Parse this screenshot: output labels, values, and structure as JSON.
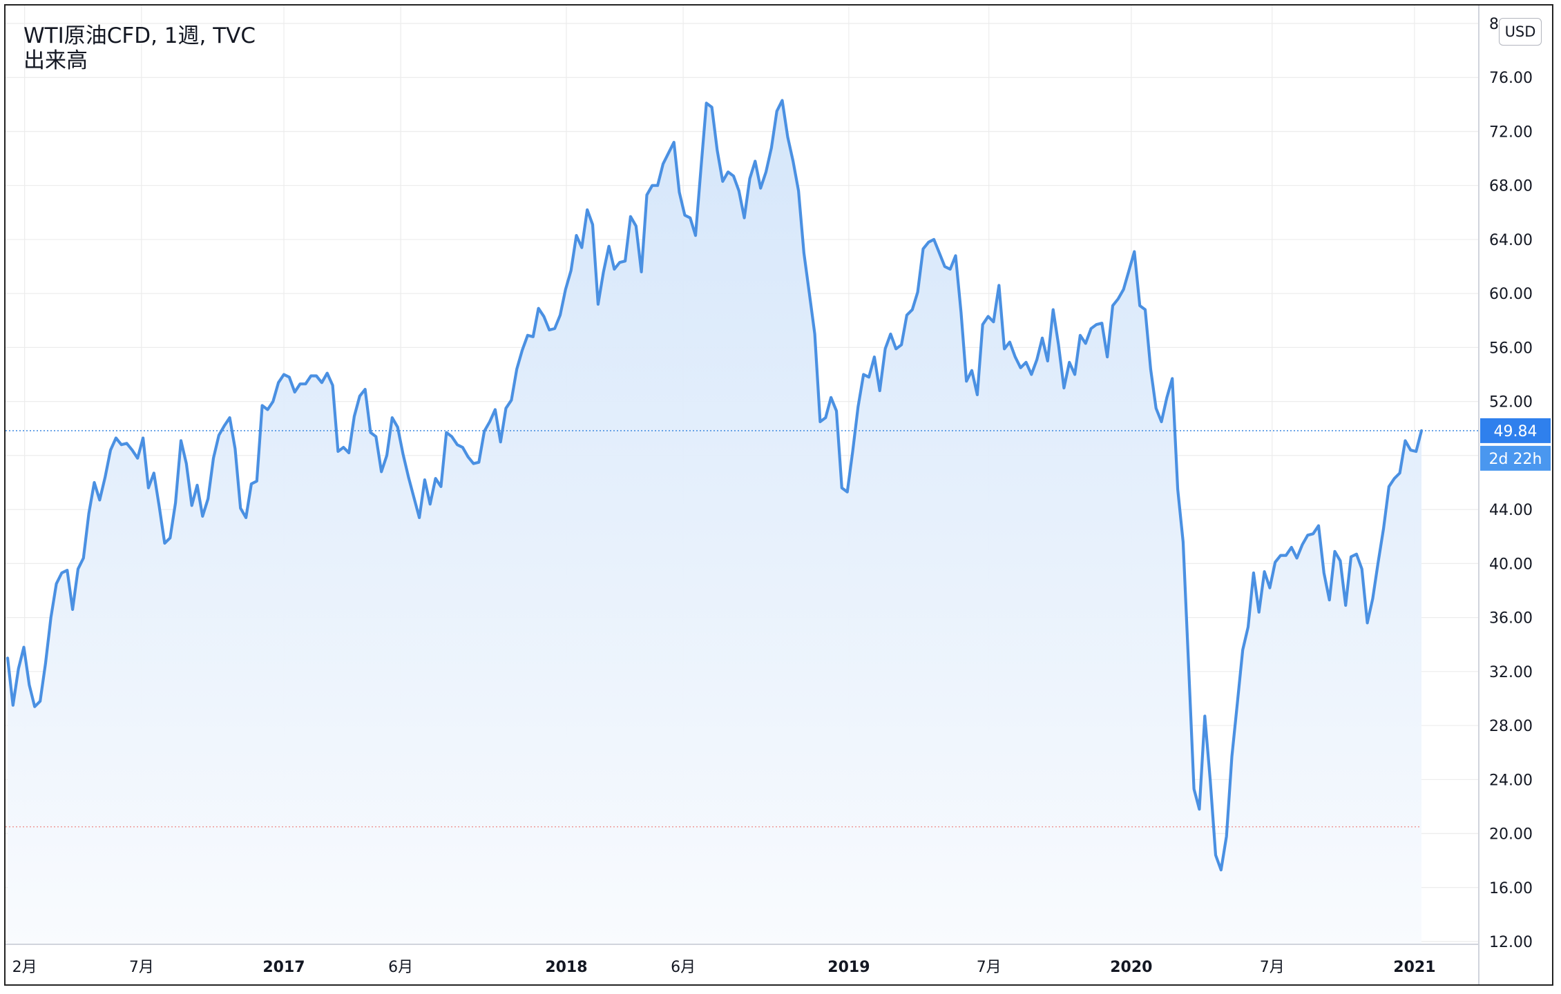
{
  "header": {
    "symbol_line": "WTI原油CFD, 1週, TVC",
    "indicator_line": "出来高"
  },
  "currency_button": "USD",
  "price_tag": {
    "value": "49.84",
    "countdown": "2d 22h"
  },
  "colors": {
    "line": "#4a90e2",
    "area_top": "#d3e5fa",
    "area_bottom": "#f9fbfe",
    "grid": "#ececec",
    "last_price_line": "#4a90e2",
    "ref_line": "#ef9a9a",
    "price_tag_bg": "#2f80ed",
    "countdown_bg": "#4a97ef"
  },
  "chart_data": {
    "type": "area",
    "title": "WTI原油CFD, 1週, TVC",
    "xlabel": "",
    "ylabel": "",
    "ylim": [
      12,
      80
    ],
    "y_ticks": [
      "12.00",
      "16.00",
      "20.00",
      "24.00",
      "28.00",
      "32.00",
      "36.00",
      "40.00",
      "44.00",
      "48.00",
      "52.00",
      "56.00",
      "60.00",
      "64.00",
      "68.00",
      "72.00",
      "76.00",
      "8"
    ],
    "x_ticks": [
      {
        "label": "2月",
        "date": "2016-02-01",
        "bold": false
      },
      {
        "label": "7月",
        "date": "2016-07-01",
        "bold": false
      },
      {
        "label": "2017",
        "date": "2017-01-01",
        "bold": true
      },
      {
        "label": "6月",
        "date": "2017-06-01",
        "bold": false
      },
      {
        "label": "2018",
        "date": "2018-01-01",
        "bold": true
      },
      {
        "label": "6月",
        "date": "2018-06-01",
        "bold": false
      },
      {
        "label": "2019",
        "date": "2019-01-01",
        "bold": true
      },
      {
        "label": "7月",
        "date": "2019-07-01",
        "bold": false
      },
      {
        "label": "2020",
        "date": "2020-01-01",
        "bold": true
      },
      {
        "label": "7月",
        "date": "2020-07-01",
        "bold": false
      },
      {
        "label": "2021",
        "date": "2021-01-01",
        "bold": true
      }
    ],
    "last_price": 49.84,
    "reference_line": 20.5,
    "grid": true,
    "series": [
      {
        "points": [
          [
            "2016-01-10",
            33.0
          ],
          [
            "2016-01-17",
            29.5
          ],
          [
            "2016-01-24",
            32.2
          ],
          [
            "2016-01-31",
            33.8
          ],
          [
            "2016-02-07",
            31.0
          ],
          [
            "2016-02-14",
            29.4
          ],
          [
            "2016-02-21",
            29.8
          ],
          [
            "2016-02-28",
            32.6
          ],
          [
            "2016-03-06",
            36.0
          ],
          [
            "2016-03-13",
            38.5
          ],
          [
            "2016-03-20",
            39.3
          ],
          [
            "2016-03-27",
            39.5
          ],
          [
            "2016-04-03",
            36.6
          ],
          [
            "2016-04-10",
            39.6
          ],
          [
            "2016-04-17",
            40.4
          ],
          [
            "2016-04-24",
            43.7
          ],
          [
            "2016-05-01",
            46.0
          ],
          [
            "2016-05-08",
            44.7
          ],
          [
            "2016-05-15",
            46.4
          ],
          [
            "2016-05-22",
            48.4
          ],
          [
            "2016-05-29",
            49.3
          ],
          [
            "2016-06-05",
            48.8
          ],
          [
            "2016-06-12",
            48.9
          ],
          [
            "2016-06-19",
            48.4
          ],
          [
            "2016-06-26",
            47.8
          ],
          [
            "2016-07-03",
            49.3
          ],
          [
            "2016-07-10",
            45.6
          ],
          [
            "2016-07-17",
            46.7
          ],
          [
            "2016-07-24",
            44.2
          ],
          [
            "2016-07-31",
            41.5
          ],
          [
            "2016-08-07",
            41.9
          ],
          [
            "2016-08-14",
            44.5
          ],
          [
            "2016-08-21",
            49.1
          ],
          [
            "2016-08-28",
            47.4
          ],
          [
            "2016-09-04",
            44.3
          ],
          [
            "2016-09-11",
            45.8
          ],
          [
            "2016-09-18",
            43.5
          ],
          [
            "2016-09-25",
            44.8
          ],
          [
            "2016-10-02",
            47.8
          ],
          [
            "2016-10-09",
            49.5
          ],
          [
            "2016-10-16",
            50.2
          ],
          [
            "2016-10-23",
            50.8
          ],
          [
            "2016-10-30",
            48.5
          ],
          [
            "2016-11-06",
            44.1
          ],
          [
            "2016-11-13",
            43.4
          ],
          [
            "2016-11-20",
            45.9
          ],
          [
            "2016-11-27",
            46.1
          ],
          [
            "2016-12-04",
            51.7
          ],
          [
            "2016-12-11",
            51.4
          ],
          [
            "2016-12-18",
            52.0
          ],
          [
            "2016-12-25",
            53.4
          ],
          [
            "2017-01-01",
            54.0
          ],
          [
            "2017-01-08",
            53.8
          ],
          [
            "2017-01-15",
            52.7
          ],
          [
            "2017-01-22",
            53.3
          ],
          [
            "2017-01-29",
            53.3
          ],
          [
            "2017-02-05",
            53.9
          ],
          [
            "2017-02-12",
            53.9
          ],
          [
            "2017-02-19",
            53.4
          ],
          [
            "2017-02-26",
            54.1
          ],
          [
            "2017-03-05",
            53.2
          ],
          [
            "2017-03-12",
            48.3
          ],
          [
            "2017-03-19",
            48.6
          ],
          [
            "2017-03-26",
            48.2
          ],
          [
            "2017-04-02",
            50.9
          ],
          [
            "2017-04-09",
            52.4
          ],
          [
            "2017-04-16",
            52.9
          ],
          [
            "2017-04-23",
            49.7
          ],
          [
            "2017-04-30",
            49.4
          ],
          [
            "2017-05-07",
            46.8
          ],
          [
            "2017-05-14",
            48.0
          ],
          [
            "2017-05-21",
            50.8
          ],
          [
            "2017-05-28",
            50.1
          ],
          [
            "2017-06-04",
            48.1
          ],
          [
            "2017-06-11",
            46.4
          ],
          [
            "2017-06-18",
            44.9
          ],
          [
            "2017-06-25",
            43.4
          ],
          [
            "2017-07-02",
            46.2
          ],
          [
            "2017-07-09",
            44.4
          ],
          [
            "2017-07-16",
            46.3
          ],
          [
            "2017-07-23",
            45.7
          ],
          [
            "2017-07-30",
            49.7
          ],
          [
            "2017-08-06",
            49.4
          ],
          [
            "2017-08-13",
            48.8
          ],
          [
            "2017-08-20",
            48.6
          ],
          [
            "2017-08-27",
            47.9
          ],
          [
            "2017-09-03",
            47.4
          ],
          [
            "2017-09-10",
            47.5
          ],
          [
            "2017-09-17",
            49.8
          ],
          [
            "2017-09-24",
            50.5
          ],
          [
            "2017-10-01",
            51.4
          ],
          [
            "2017-10-08",
            49.0
          ],
          [
            "2017-10-15",
            51.5
          ],
          [
            "2017-10-22",
            52.1
          ],
          [
            "2017-10-29",
            54.4
          ],
          [
            "2017-11-05",
            55.8
          ],
          [
            "2017-11-12",
            56.9
          ],
          [
            "2017-11-19",
            56.8
          ],
          [
            "2017-11-26",
            58.9
          ],
          [
            "2017-12-03",
            58.3
          ],
          [
            "2017-12-10",
            57.3
          ],
          [
            "2017-12-17",
            57.4
          ],
          [
            "2017-12-24",
            58.4
          ],
          [
            "2017-12-31",
            60.3
          ],
          [
            "2018-01-07",
            61.7
          ],
          [
            "2018-01-14",
            64.3
          ],
          [
            "2018-01-21",
            63.4
          ],
          [
            "2018-01-28",
            66.2
          ],
          [
            "2018-02-04",
            65.1
          ],
          [
            "2018-02-11",
            59.2
          ],
          [
            "2018-02-18",
            61.6
          ],
          [
            "2018-02-25",
            63.5
          ],
          [
            "2018-03-04",
            61.8
          ],
          [
            "2018-03-11",
            62.3
          ],
          [
            "2018-03-18",
            62.4
          ],
          [
            "2018-03-25",
            65.7
          ],
          [
            "2018-04-01",
            65.0
          ],
          [
            "2018-04-08",
            61.6
          ],
          [
            "2018-04-15",
            67.3
          ],
          [
            "2018-04-22",
            68.0
          ],
          [
            "2018-04-29",
            68.0
          ],
          [
            "2018-05-06",
            69.6
          ],
          [
            "2018-05-13",
            70.4
          ],
          [
            "2018-05-20",
            71.2
          ],
          [
            "2018-05-27",
            67.5
          ],
          [
            "2018-06-03",
            65.8
          ],
          [
            "2018-06-10",
            65.6
          ],
          [
            "2018-06-17",
            64.3
          ],
          [
            "2018-06-24",
            69.3
          ],
          [
            "2018-07-01",
            74.1
          ],
          [
            "2018-07-08",
            73.8
          ],
          [
            "2018-07-15",
            70.6
          ],
          [
            "2018-07-22",
            68.3
          ],
          [
            "2018-07-29",
            69.0
          ],
          [
            "2018-08-05",
            68.7
          ],
          [
            "2018-08-12",
            67.6
          ],
          [
            "2018-08-19",
            65.6
          ],
          [
            "2018-08-26",
            68.5
          ],
          [
            "2018-09-02",
            69.8
          ],
          [
            "2018-09-09",
            67.8
          ],
          [
            "2018-09-16",
            69.0
          ],
          [
            "2018-09-23",
            70.8
          ],
          [
            "2018-09-30",
            73.5
          ],
          [
            "2018-10-07",
            74.3
          ],
          [
            "2018-10-14",
            71.6
          ],
          [
            "2018-10-21",
            69.8
          ],
          [
            "2018-10-28",
            67.6
          ],
          [
            "2018-11-04",
            63.0
          ],
          [
            "2018-11-11",
            60.0
          ],
          [
            "2018-11-18",
            57.0
          ],
          [
            "2018-11-25",
            50.5
          ],
          [
            "2018-12-02",
            50.8
          ],
          [
            "2018-12-09",
            52.3
          ],
          [
            "2018-12-16",
            51.3
          ],
          [
            "2018-12-23",
            45.6
          ],
          [
            "2018-12-30",
            45.3
          ],
          [
            "2019-01-06",
            48.3
          ],
          [
            "2019-01-13",
            51.6
          ],
          [
            "2019-01-20",
            54.0
          ],
          [
            "2019-01-27",
            53.8
          ],
          [
            "2019-02-03",
            55.3
          ],
          [
            "2019-02-10",
            52.8
          ],
          [
            "2019-02-17",
            55.9
          ],
          [
            "2019-02-24",
            57.0
          ],
          [
            "2019-03-03",
            55.9
          ],
          [
            "2019-03-10",
            56.2
          ],
          [
            "2019-03-17",
            58.4
          ],
          [
            "2019-03-24",
            58.8
          ],
          [
            "2019-03-31",
            60.1
          ],
          [
            "2019-04-07",
            63.3
          ],
          [
            "2019-04-14",
            63.8
          ],
          [
            "2019-04-21",
            64.0
          ],
          [
            "2019-04-28",
            63.0
          ],
          [
            "2019-05-05",
            62.0
          ],
          [
            "2019-05-12",
            61.8
          ],
          [
            "2019-05-19",
            62.8
          ],
          [
            "2019-05-26",
            58.6
          ],
          [
            "2019-06-02",
            53.5
          ],
          [
            "2019-06-09",
            54.3
          ],
          [
            "2019-06-16",
            52.5
          ],
          [
            "2019-06-23",
            57.7
          ],
          [
            "2019-06-30",
            58.3
          ],
          [
            "2019-07-07",
            57.9
          ],
          [
            "2019-07-14",
            60.6
          ],
          [
            "2019-07-21",
            55.9
          ],
          [
            "2019-07-28",
            56.4
          ],
          [
            "2019-08-04",
            55.3
          ],
          [
            "2019-08-11",
            54.5
          ],
          [
            "2019-08-18",
            54.9
          ],
          [
            "2019-08-25",
            54.0
          ],
          [
            "2019-09-01",
            55.1
          ],
          [
            "2019-09-08",
            56.7
          ],
          [
            "2019-09-15",
            55.0
          ],
          [
            "2019-09-22",
            58.8
          ],
          [
            "2019-09-29",
            56.2
          ],
          [
            "2019-10-06",
            53.0
          ],
          [
            "2019-10-13",
            54.9
          ],
          [
            "2019-10-20",
            54.0
          ],
          [
            "2019-10-27",
            56.9
          ],
          [
            "2019-11-03",
            56.3
          ],
          [
            "2019-11-10",
            57.4
          ],
          [
            "2019-11-17",
            57.7
          ],
          [
            "2019-11-24",
            57.8
          ],
          [
            "2019-12-01",
            55.3
          ],
          [
            "2019-12-08",
            59.1
          ],
          [
            "2019-12-15",
            59.6
          ],
          [
            "2019-12-22",
            60.3
          ],
          [
            "2019-12-29",
            61.7
          ],
          [
            "2020-01-05",
            63.1
          ],
          [
            "2020-01-12",
            59.1
          ],
          [
            "2020-01-19",
            58.8
          ],
          [
            "2020-01-26",
            54.4
          ],
          [
            "2020-02-02",
            51.5
          ],
          [
            "2020-02-09",
            50.5
          ],
          [
            "2020-02-16",
            52.3
          ],
          [
            "2020-02-23",
            53.7
          ],
          [
            "2020-03-01",
            45.5
          ],
          [
            "2020-03-08",
            41.6
          ],
          [
            "2020-03-15",
            32.5
          ],
          [
            "2020-03-22",
            23.3
          ],
          [
            "2020-03-29",
            21.8
          ],
          [
            "2020-04-05",
            28.7
          ],
          [
            "2020-04-12",
            24.0
          ],
          [
            "2020-04-19",
            18.4
          ],
          [
            "2020-04-26",
            17.3
          ],
          [
            "2020-05-03",
            19.8
          ],
          [
            "2020-05-10",
            25.7
          ],
          [
            "2020-05-17",
            29.6
          ],
          [
            "2020-05-24",
            33.6
          ],
          [
            "2020-05-31",
            35.3
          ],
          [
            "2020-06-07",
            39.3
          ],
          [
            "2020-06-14",
            36.4
          ],
          [
            "2020-06-21",
            39.4
          ],
          [
            "2020-06-28",
            38.2
          ],
          [
            "2020-07-05",
            40.1
          ],
          [
            "2020-07-12",
            40.6
          ],
          [
            "2020-07-19",
            40.6
          ],
          [
            "2020-07-26",
            41.2
          ],
          [
            "2020-08-02",
            40.4
          ],
          [
            "2020-08-09",
            41.4
          ],
          [
            "2020-08-16",
            42.1
          ],
          [
            "2020-08-23",
            42.2
          ],
          [
            "2020-08-30",
            42.8
          ],
          [
            "2020-09-06",
            39.3
          ],
          [
            "2020-09-13",
            37.3
          ],
          [
            "2020-09-20",
            40.9
          ],
          [
            "2020-09-27",
            40.2
          ],
          [
            "2020-10-04",
            36.9
          ],
          [
            "2020-10-11",
            40.5
          ],
          [
            "2020-10-18",
            40.7
          ],
          [
            "2020-10-25",
            39.6
          ],
          [
            "2020-11-01",
            35.6
          ],
          [
            "2020-11-08",
            37.4
          ],
          [
            "2020-11-15",
            40.1
          ],
          [
            "2020-11-22",
            42.6
          ],
          [
            "2020-11-29",
            45.7
          ],
          [
            "2020-12-06",
            46.3
          ],
          [
            "2020-12-13",
            46.7
          ],
          [
            "2020-12-20",
            49.1
          ],
          [
            "2020-12-27",
            48.4
          ],
          [
            "2021-01-03",
            48.3
          ],
          [
            "2021-01-10",
            49.84
          ]
        ]
      }
    ]
  }
}
